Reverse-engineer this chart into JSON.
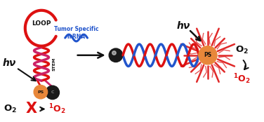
{
  "bg_color": "#ffffff",
  "red": "#dd1111",
  "blue": "#2255cc",
  "pink": "#cc2266",
  "orange": "#e8873a",
  "dark": "#111111",
  "fig_width": 3.76,
  "fig_height": 1.74,
  "dpi": 100,
  "loop_label": "LOOP",
  "stem_label": "STEM",
  "mrna_label_line1": "Tumor Specific",
  "mrna_label_line2": "mRNA",
  "ps_label": "PS",
  "hv_label": "hν",
  "x_crossed": "X",
  "xlim": [
    0,
    10
  ],
  "ylim": [
    0,
    4.6
  ]
}
